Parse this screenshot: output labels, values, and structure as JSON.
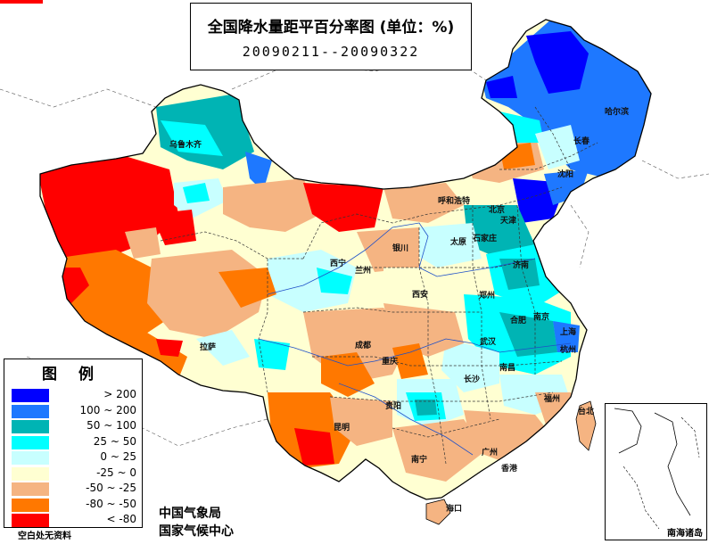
{
  "title": "全国降水量距平百分率图 (单位：%)",
  "period": "20090211--20090322",
  "legend": {
    "title": "图例",
    "items": [
      {
        "label": "> 200",
        "color": "#0000ff"
      },
      {
        "label": "100 ~ 200",
        "color": "#1e78ff"
      },
      {
        "label": "50 ~ 100",
        "color": "#00b4b4"
      },
      {
        "label": "25 ~ 50",
        "color": "#00ffff"
      },
      {
        "label": "0 ~ 25",
        "color": "#c8ffff"
      },
      {
        "label": "-25 ~ 0",
        "color": "#ffffd2"
      },
      {
        "label": "-50 ~ -25",
        "color": "#f5b482"
      },
      {
        "label": "-80 ~ -50",
        "color": "#ff7800"
      },
      {
        "label": "< -80",
        "color": "#ff0000"
      }
    ],
    "nodata_note": "空白处无资料"
  },
  "credits": {
    "org1": "中国气象局",
    "org2": "国家气候中心"
  },
  "inset": {
    "label": "南海诸岛"
  },
  "cities": [
    {
      "name": "乌鲁木齐"
    },
    {
      "name": "哈尔滨"
    },
    {
      "name": "长春"
    },
    {
      "name": "沈阳"
    },
    {
      "name": "呼和浩特"
    },
    {
      "name": "北京"
    },
    {
      "name": "天津"
    },
    {
      "name": "石家庄"
    },
    {
      "name": "太原"
    },
    {
      "name": "银川"
    },
    {
      "name": "西宁"
    },
    {
      "name": "兰州"
    },
    {
      "name": "济南"
    },
    {
      "name": "郑州"
    },
    {
      "name": "西安"
    },
    {
      "name": "合肥"
    },
    {
      "name": "南京"
    },
    {
      "name": "上海"
    },
    {
      "name": "武汉"
    },
    {
      "name": "杭州"
    },
    {
      "name": "拉萨"
    },
    {
      "name": "成都"
    },
    {
      "name": "重庆"
    },
    {
      "name": "长沙"
    },
    {
      "name": "南昌"
    },
    {
      "name": "福州"
    },
    {
      "name": "贵阳"
    },
    {
      "name": "台北"
    },
    {
      "name": "昆明"
    },
    {
      "name": "南宁"
    },
    {
      "name": "广州"
    },
    {
      "name": "香港"
    },
    {
      "name": "海口"
    }
  ]
}
